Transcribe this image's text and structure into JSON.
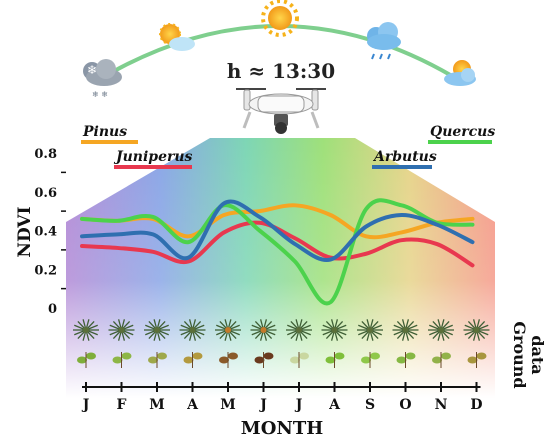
{
  "header": {
    "flight_time": "h ≈ 13:30",
    "weather_icons": [
      "snow-cloud-icon",
      "sun-cloud-icon",
      "sun-icon",
      "rain-cloud-icon",
      "sunset-cloud-icon"
    ],
    "drone_icon": "drone-icon"
  },
  "chart_data": {
    "type": "line",
    "categories": [
      "J",
      "F",
      "M",
      "A",
      "M",
      "J",
      "J",
      "A",
      "S",
      "O",
      "N",
      "D"
    ],
    "xlabel": "MONTH",
    "ylabel": "NDVI",
    "ylim": [
      0,
      0.8
    ],
    "yticks": [
      {
        "v": 0,
        "label": "0"
      },
      {
        "v": 0.2,
        "label": "0.2"
      },
      {
        "v": 0.4,
        "label": "0.4"
      },
      {
        "v": 0.6,
        "label": "0.6"
      },
      {
        "v": 0.8,
        "label": "0.8"
      }
    ],
    "right_label_line1": "Ground",
    "right_label_line2": "data",
    "series": [
      {
        "name": "Pinus",
        "color": "#f5a623",
        "values": [
          0.46,
          0.45,
          0.46,
          0.37,
          0.48,
          0.5,
          0.53,
          0.48,
          0.37,
          0.39,
          0.44,
          0.46
        ]
      },
      {
        "name": "Juniperus",
        "color": "#e8384f",
        "values": [
          0.32,
          0.31,
          0.29,
          0.24,
          0.39,
          0.44,
          0.36,
          0.26,
          0.28,
          0.35,
          0.33,
          0.22
        ]
      },
      {
        "name": "Quercus",
        "color": "#4cd24c",
        "values": [
          0.46,
          0.45,
          0.47,
          0.34,
          0.53,
          0.4,
          0.24,
          0.03,
          0.51,
          0.53,
          0.44,
          0.43
        ]
      },
      {
        "name": "Arbutus",
        "color": "#2f6fb0",
        "values": [
          0.37,
          0.38,
          0.38,
          0.26,
          0.54,
          0.47,
          0.33,
          0.25,
          0.42,
          0.48,
          0.43,
          0.34
        ]
      }
    ]
  }
}
